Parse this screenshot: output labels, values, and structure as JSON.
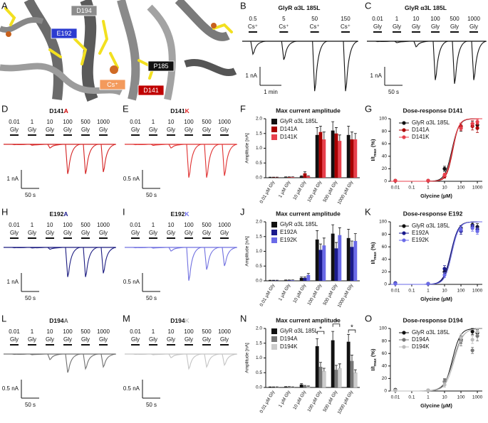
{
  "chart_data": [
    {
      "panel": "A",
      "type": "structure",
      "labels": [
        {
          "text": "D194",
          "color": "#8c8c8c"
        },
        {
          "text": "E192",
          "color": "#2b3bd0"
        },
        {
          "text": "Cs⁺",
          "color": "#f39a5c"
        },
        {
          "text": "P185",
          "color": "#111111"
        },
        {
          "text": "D141",
          "color": "#c00000"
        }
      ]
    },
    {
      "panel": "B",
      "type": "trace",
      "title": [
        "GlyR α3L 185L"
      ],
      "color": "#111111",
      "applications": [
        {
          "conc": "0.5",
          "agent": "Cs⁺"
        },
        {
          "conc": "5",
          "agent": "Cs⁺"
        },
        {
          "conc": "50",
          "agent": "Cs⁺"
        },
        {
          "conc": "150",
          "agent": "Cs⁺"
        }
      ],
      "peaks": [
        0.7,
        1.0,
        2.7,
        2.7
      ],
      "scale": {
        "y": {
          "value": 1,
          "label": "1 nA"
        },
        "x": {
          "value": 60,
          "label": "1 min"
        }
      }
    },
    {
      "panel": "C",
      "type": "trace",
      "title": [
        "GlyR α3L 185L"
      ],
      "color": "#111111",
      "applications": [
        {
          "conc": "0.01",
          "agent": "Gly"
        },
        {
          "conc": "1",
          "agent": "Gly"
        },
        {
          "conc": "10",
          "agent": "Gly"
        },
        {
          "conc": "100",
          "agent": "Gly"
        },
        {
          "conc": "500",
          "agent": "Gly"
        },
        {
          "conc": "1000",
          "agent": "Gly"
        }
      ],
      "peaks": [
        0.02,
        0.08,
        0.3,
        2.1,
        2.3,
        2.1
      ],
      "scale": {
        "y": {
          "value": 1,
          "label": "1 nA"
        },
        "x": {
          "value": 50,
          "label": "50 s"
        }
      }
    },
    {
      "panel": "D",
      "type": "trace",
      "title": [
        "D141",
        "A"
      ],
      "accent_color": "#d00000",
      "color": "#d42020",
      "applications": [
        {
          "conc": "0.01",
          "agent": "Gly"
        },
        {
          "conc": "1",
          "agent": "Gly"
        },
        {
          "conc": "10",
          "agent": "Gly"
        },
        {
          "conc": "100",
          "agent": "Gly"
        },
        {
          "conc": "500",
          "agent": "Gly"
        },
        {
          "conc": "1000",
          "agent": "Gly"
        }
      ],
      "peaks": [
        0.02,
        0.05,
        0.2,
        1.6,
        1.6,
        1.5
      ],
      "scale": {
        "y": {
          "value": 1,
          "label": "1 nA"
        },
        "x": {
          "value": 50,
          "label": "50 s"
        }
      }
    },
    {
      "panel": "E",
      "type": "trace",
      "title": [
        "D141",
        "K"
      ],
      "accent_color": "#e02020",
      "color": "#e03030",
      "applications": [
        {
          "conc": "0.01",
          "agent": "Gly"
        },
        {
          "conc": "1",
          "agent": "Gly"
        },
        {
          "conc": "10",
          "agent": "Gly"
        },
        {
          "conc": "100",
          "agent": "Gly"
        },
        {
          "conc": "500",
          "agent": "Gly"
        },
        {
          "conc": "1000",
          "agent": "Gly"
        }
      ],
      "peaks": [
        0.01,
        0.03,
        0.1,
        0.9,
        0.9,
        0.85
      ],
      "scale": {
        "y": {
          "value": 0.5,
          "label": "0.5 nA"
        },
        "x": {
          "value": 50,
          "label": "50 s"
        }
      }
    },
    {
      "panel": "F",
      "type": "bar",
      "title": "Max current amplitude",
      "ylabel": "Amplitude [nA]",
      "categories": [
        "0.01 µM Gly",
        "1 µM Gly",
        "10 µM Gly",
        "100 µM Gly",
        "500 µM Gly",
        "1000 µM Gly"
      ],
      "ylim": [
        0,
        2
      ],
      "yticks": [
        {
          "value": 0,
          "label": "0.0"
        },
        0.5,
        {
          "value": 1,
          "label": "1.0"
        },
        1.5,
        {
          "value": 2,
          "label": "2.0"
        }
      ],
      "series": [
        {
          "name": "GlyR α3L 185L",
          "color": "#111111",
          "values": [
            0.01,
            0.02,
            0.05,
            1.45,
            1.6,
            1.45
          ],
          "errors": [
            0.01,
            0.01,
            0.02,
            0.25,
            0.3,
            0.3
          ]
        },
        {
          "name": "D141A",
          "color": "#a80000",
          "values": [
            0.01,
            0.02,
            0.15,
            1.55,
            1.5,
            1.3
          ],
          "errors": [
            0.01,
            0.01,
            0.05,
            0.2,
            0.2,
            0.25
          ]
        },
        {
          "name": "D141K",
          "color": "#e8404c",
          "values": [
            0.01,
            0.02,
            0.05,
            1.3,
            1.25,
            1.3
          ],
          "errors": [
            0.01,
            0.01,
            0.02,
            0.25,
            0.2,
            0.2
          ]
        }
      ]
    },
    {
      "panel": "G",
      "type": "dose",
      "title": "Dose-response D141",
      "xlabel": "Glycine (µM)",
      "ylabel": {
        "main": "I/I",
        "sub": "max",
        "tail": " (%)"
      },
      "log_x": true,
      "xlim": [
        0.005,
        2000
      ],
      "xticks": [
        0.01,
        0.1,
        1,
        10,
        100,
        1000
      ],
      "ylim": [
        0,
        100
      ],
      "yticks": [
        0,
        20,
        40,
        60,
        80,
        100
      ],
      "x": [
        0.01,
        1,
        10,
        100,
        500,
        1000
      ],
      "series": [
        {
          "name": "GlyR α3L 185L",
          "color": "#111111",
          "values": [
            1,
            1,
            20,
            85,
            92,
            90
          ],
          "errors": [
            0.5,
            0.5,
            4,
            5,
            4,
            5
          ],
          "fit": {
            "ec50": 28,
            "hill": 2
          }
        },
        {
          "name": "D141A",
          "color": "#a80000",
          "values": [
            1,
            1,
            8,
            88,
            88,
            85
          ],
          "errors": [
            0.5,
            0.5,
            3,
            5,
            6,
            7
          ],
          "fit": {
            "ec50": 32,
            "hill": 2.3
          }
        },
        {
          "name": "D141K",
          "color": "#e8404c",
          "values": [
            1,
            1,
            10,
            85,
            92,
            95
          ],
          "errors": [
            0.5,
            0.5,
            3,
            4,
            5,
            4
          ],
          "fit": {
            "ec50": 30,
            "hill": 2.2
          }
        }
      ]
    },
    {
      "panel": "H",
      "type": "trace",
      "title": [
        "E192",
        "A"
      ],
      "accent_color": "#1a1a8c",
      "color": "#1a1a80",
      "applications": [
        {
          "conc": "0.01",
          "agent": "Gly"
        },
        {
          "conc": "1",
          "agent": "Gly"
        },
        {
          "conc": "10",
          "agent": "Gly"
        },
        {
          "conc": "100",
          "agent": "Gly"
        },
        {
          "conc": "500",
          "agent": "Gly"
        },
        {
          "conc": "1000",
          "agent": "Gly"
        }
      ],
      "peaks": [
        0.02,
        0.03,
        0.1,
        1.6,
        1.6,
        1.4
      ],
      "scale": {
        "y": {
          "value": 1,
          "label": "1 nA"
        },
        "x": {
          "value": 50,
          "label": "50 s"
        }
      }
    },
    {
      "panel": "I",
      "type": "trace",
      "title": [
        "E192",
        "K"
      ],
      "accent_color": "#6a6ae8",
      "color": "#7070e0",
      "applications": [
        {
          "conc": "0.01",
          "agent": "Gly"
        },
        {
          "conc": "1",
          "agent": "Gly"
        },
        {
          "conc": "10",
          "agent": "Gly"
        },
        {
          "conc": "100",
          "agent": "Gly"
        },
        {
          "conc": "500",
          "agent": "Gly"
        },
        {
          "conc": "1000",
          "agent": "Gly"
        }
      ],
      "peaks": [
        0.01,
        0.02,
        0.1,
        0.9,
        0.6,
        0.5
      ],
      "scale": {
        "y": {
          "value": 0.5,
          "label": "0.5 nA"
        },
        "x": {
          "value": 50,
          "label": "50 s"
        }
      }
    },
    {
      "panel": "J",
      "type": "bar",
      "title": "Max current amplitude",
      "ylabel": "Amplitude [nA]",
      "categories": [
        "0.01 µM Gly",
        "1 µM Gly",
        "10 µM Gly",
        "100 µM Gly",
        "500 µM Gly",
        "1000 µM Gly"
      ],
      "ylim": [
        0,
        2
      ],
      "yticks": [
        {
          "value": 0,
          "label": "0.0"
        },
        0.5,
        {
          "value": 1,
          "label": "1.0"
        },
        1.5,
        {
          "value": 2,
          "label": "2.0"
        }
      ],
      "series": [
        {
          "name": "GlyR α3L 185L",
          "color": "#111111",
          "values": [
            0.01,
            0.02,
            0.1,
            1.4,
            1.6,
            1.45
          ],
          "errors": [
            0.01,
            0.01,
            0.03,
            0.3,
            0.3,
            0.3
          ]
        },
        {
          "name": "E192A",
          "color": "#1a1a8c",
          "values": [
            0.01,
            0.02,
            0.1,
            1.05,
            1.1,
            1.15
          ],
          "errors": [
            0.01,
            0.01,
            0.03,
            0.2,
            0.2,
            0.2
          ]
        },
        {
          "name": "E192K",
          "color": "#6a6ae8",
          "values": [
            0.01,
            0.02,
            0.2,
            1.2,
            1.55,
            1.35
          ],
          "errors": [
            0.01,
            0.01,
            0.05,
            0.25,
            0.25,
            0.25
          ]
        }
      ]
    },
    {
      "panel": "K",
      "type": "dose",
      "title": "Dose-response E192",
      "xlabel": "Glycine (µM)",
      "ylabel": {
        "main": "I/I",
        "sub": "max",
        "tail": " (%)"
      },
      "log_x": true,
      "xlim": [
        0.005,
        2000
      ],
      "xticks": [
        0.01,
        0.1,
        1,
        10,
        100,
        1000
      ],
      "ylim": [
        0,
        100
      ],
      "yticks": [
        0,
        20,
        40,
        60,
        80,
        100
      ],
      "x": [
        0.01,
        1,
        10,
        100,
        500,
        1000
      ],
      "series": [
        {
          "name": "GlyR α3L 185L",
          "color": "#111111",
          "values": [
            2,
            1,
            20,
            90,
            95,
            92
          ],
          "errors": [
            1,
            0.5,
            4,
            4,
            4,
            5
          ],
          "fit": {
            "ec50": 25,
            "hill": 2
          }
        },
        {
          "name": "E192A",
          "color": "#1a1a8c",
          "values": [
            2,
            1,
            25,
            85,
            92,
            88
          ],
          "errors": [
            1,
            0.5,
            5,
            5,
            4,
            5
          ],
          "fit": {
            "ec50": 24,
            "hill": 1.9
          }
        },
        {
          "name": "E192K",
          "color": "#6a6ae8",
          "values": [
            1,
            1,
            15,
            88,
            90,
            85
          ],
          "errors": [
            0.5,
            0.5,
            4,
            4,
            5,
            5
          ],
          "fit": {
            "ec50": 28,
            "hill": 2
          }
        }
      ]
    },
    {
      "panel": "L",
      "type": "trace",
      "title": [
        "D194",
        "A"
      ],
      "accent_color": "#6e6e6e",
      "color": "#707070",
      "applications": [
        {
          "conc": "0.01",
          "agent": "Gly"
        },
        {
          "conc": "1",
          "agent": "Gly"
        },
        {
          "conc": "10",
          "agent": "Gly"
        },
        {
          "conc": "100",
          "agent": "Gly"
        },
        {
          "conc": "500",
          "agent": "Gly"
        },
        {
          "conc": "1000",
          "agent": "Gly"
        }
      ],
      "peaks": [
        0.01,
        0.02,
        0.15,
        0.5,
        0.4,
        0.35
      ],
      "scale": {
        "y": {
          "value": 0.5,
          "label": "0.5 nA"
        },
        "x": {
          "value": 50,
          "label": "50 s"
        }
      }
    },
    {
      "panel": "M",
      "type": "trace",
      "title": [
        "D194",
        "K"
      ],
      "accent_color": "#c8c8c8",
      "color": "#c4c4c4",
      "applications": [
        {
          "conc": "0.01",
          "agent": "Gly"
        },
        {
          "conc": "1",
          "agent": "Gly"
        },
        {
          "conc": "10",
          "agent": "Gly"
        },
        {
          "conc": "100",
          "agent": "Gly"
        },
        {
          "conc": "500",
          "agent": "Gly"
        },
        {
          "conc": "1000",
          "agent": "Gly"
        }
      ],
      "peaks": [
        0.01,
        0.02,
        0.1,
        0.4,
        0.35,
        0.3
      ],
      "scale": {
        "y": {
          "value": 0.5,
          "label": "0.5 nA"
        },
        "x": {
          "value": 50,
          "label": "50 s"
        }
      }
    },
    {
      "panel": "N",
      "type": "bar",
      "title": "Max current amplitude",
      "ylabel": "Amplitude [nA]",
      "categories": [
        "0.01 µM Gly",
        "1 µM Gly",
        "10 µM Gly",
        "100 µM Gly",
        "500 µM Gly",
        "1000 µM Gly"
      ],
      "ylim": [
        0,
        2
      ],
      "yticks": [
        {
          "value": 0,
          "label": "0.0"
        },
        0.5,
        {
          "value": 1,
          "label": "1.0"
        },
        1.5,
        {
          "value": 2,
          "label": "2.0"
        }
      ],
      "series": [
        {
          "name": "GlyR α3L 185L",
          "color": "#111111",
          "values": [
            0.01,
            0.02,
            0.1,
            1.4,
            1.6,
            1.55
          ],
          "errors": [
            0.01,
            0.01,
            0.03,
            0.25,
            0.3,
            0.25
          ]
        },
        {
          "name": "D194A",
          "color": "#777777",
          "values": [
            0.01,
            0.02,
            0.05,
            0.7,
            0.6,
            0.9
          ],
          "errors": [
            0.01,
            0.01,
            0.02,
            0.15,
            0.15,
            0.2
          ]
        },
        {
          "name": "D194K",
          "color": "#cccccc",
          "values": [
            0.01,
            0.01,
            0.03,
            0.55,
            0.65,
            0.5
          ],
          "errors": [
            0.01,
            0.01,
            0.02,
            0.1,
            0.15,
            0.1
          ]
        }
      ],
      "significance": [
        {
          "label": "*",
          "category": 3,
          "y": 1.9
        },
        {
          "label": "*",
          "category": 4,
          "y": 2.15
        },
        {
          "label": "*",
          "category": 5,
          "y": 1.95
        }
      ]
    },
    {
      "panel": "O",
      "type": "dose",
      "title": "Dose-response D194",
      "xlabel": "Glycine (µM)",
      "ylabel": {
        "main": "I/I",
        "sub": "max",
        "tail": " (%)"
      },
      "log_x": true,
      "xlim": [
        0.005,
        2000
      ],
      "xticks": [
        0.01,
        0.1,
        1,
        10,
        100,
        1000
      ],
      "ylim": [
        0,
        100
      ],
      "yticks": [
        0,
        20,
        40,
        60,
        80,
        100
      ],
      "x": [
        0.01,
        1,
        10,
        100,
        500,
        1000
      ],
      "series": [
        {
          "name": "GlyR α3L 185L",
          "color": "#111111",
          "values": [
            2,
            1,
            15,
            82,
            95,
            93
          ],
          "errors": [
            1,
            0.5,
            4,
            6,
            5,
            5
          ],
          "fit": {
            "ec50": 30,
            "hill": 1.8
          }
        },
        {
          "name": "D194A",
          "color": "#777777",
          "values": [
            1,
            1,
            15,
            80,
            65,
            88
          ],
          "errors": [
            0.5,
            0.5,
            5,
            8,
            5,
            8
          ],
          "fit": {
            "ec50": 35,
            "hill": 1.5
          }
        },
        {
          "name": "D194K",
          "color": "#bbbbbb",
          "values": [
            1,
            1,
            10,
            85,
            82,
            95
          ],
          "errors": [
            0.5,
            0.5,
            4,
            6,
            6,
            5
          ],
          "fit": {
            "ec50": 40,
            "hill": 1.6
          }
        }
      ]
    }
  ]
}
